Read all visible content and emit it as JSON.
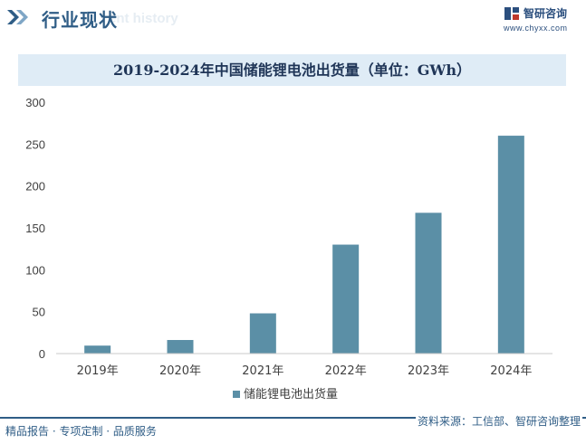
{
  "header": {
    "title": "行业现状",
    "subtitle": "ent history",
    "brand_name": "智研咨询",
    "brand_url": "www.chyxx.com"
  },
  "chart_data": {
    "type": "bar",
    "title": "2019-2024年中国储能锂电池出货量（单位：GWh）",
    "categories": [
      "2019年",
      "2020年",
      "2021年",
      "2022年",
      "2023年",
      "2024年"
    ],
    "series": [
      {
        "name": "储能锂电池出货量",
        "values": [
          9.5,
          16.2,
          48,
          130,
          168,
          260
        ],
        "color": "#5b8fa6"
      }
    ],
    "yticks": [
      "0",
      "50",
      "100",
      "150",
      "200",
      "250",
      "300"
    ],
    "ylim": [
      0,
      300
    ],
    "legend_position": "bottom-center",
    "grid": false
  },
  "footer": {
    "left": "精品报告 · 专项定制 · 品质服务",
    "source": "资料来源：工信部、智研咨询整理"
  },
  "colors": {
    "accent": "#2f5d86",
    "bar": "#5b8fa6",
    "title_band": "#dfecf6"
  }
}
